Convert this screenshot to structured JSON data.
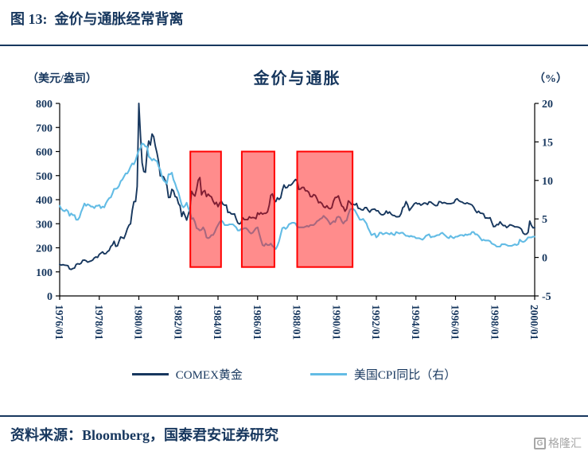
{
  "figure": {
    "caption": "图 13:  金价与通胀经常背离",
    "source": "资料来源：Bloomberg，国泰君安证券研究",
    "watermark": "格隆汇",
    "watermark_icon": "G"
  },
  "colors": {
    "navy": "#17375E",
    "gold_line": "#17375E",
    "cpi_line": "#63BCE5",
    "highlight_red": "#FF0000",
    "watermark_gray": "#A6A6A6"
  },
  "chart_data": {
    "type": "line",
    "title": "金价与通胀",
    "left_axis": {
      "unit": "（美元/盎司）",
      "min": 0,
      "max": 800,
      "ticks": [
        0,
        100,
        200,
        300,
        400,
        500,
        600,
        700,
        800
      ]
    },
    "right_axis": {
      "unit": "（%）",
      "min": -5,
      "max": 20,
      "ticks": [
        -5,
        0,
        5,
        10,
        15,
        20
      ]
    },
    "x_axis": {
      "min": 1976,
      "max": 2000,
      "ticks": [
        1976,
        1978,
        1980,
        1982,
        1984,
        1986,
        1988,
        1990,
        1992,
        1994,
        1996,
        1998,
        2000
      ],
      "tick_labels": [
        "1976/01",
        "1978/01",
        "1980/01",
        "1982/01",
        "1984/01",
        "1986/01",
        "1988/01",
        "1990/01",
        "1992/01",
        "1994/01",
        "1996/01",
        "1998/01",
        "2000/01"
      ]
    },
    "legend_position": "bottom",
    "grid": false,
    "series": [
      {
        "name": "COMEX黄金",
        "axis": "left",
        "color": "#17375E",
        "width": 1.9,
        "start_year": 1976,
        "freq": "monthly",
        "values": [
          131,
          128,
          130,
          128,
          127,
          126,
          112,
          110,
          114,
          116,
          131,
          134,
          132,
          136,
          148,
          149,
          146,
          140,
          143,
          145,
          149,
          158,
          162,
          160,
          173,
          178,
          183,
          175,
          176,
          184,
          189,
          206,
          212,
          227,
          206,
          208,
          227,
          245,
          242,
          239,
          257,
          279,
          294,
          300,
          355,
          392,
          392,
          455,
          800,
          665,
          553,
          517,
          514,
          600,
          644,
          627,
          673,
          661,
          623,
          594,
          557,
          499,
          498,
          495,
          479,
          460,
          409,
          410,
          443,
          437,
          413,
          410,
          384,
          374,
          330,
          350,
          334,
          315,
          339,
          364,
          435,
          422,
          415,
          444,
          481,
          492,
          420,
          433,
          438,
          413,
          423,
          416,
          412,
          394,
          381,
          389,
          371,
          386,
          394,
          381,
          377,
          378,
          347,
          348,
          341,
          340,
          341,
          320,
          303,
          299,
          304,
          325,
          317,
          317,
          317,
          329,
          324,
          326,
          325,
          321,
          345,
          339,
          346,
          340,
          343,
          343,
          349,
          376,
          418,
          424,
          399,
          392,
          408,
          401,
          408,
          439,
          461,
          449,
          451,
          461,
          460,
          466,
          476,
          484,
          477,
          443,
          444,
          451,
          451,
          437,
          437,
          431,
          413,
          412,
          421,
          418,
          404,
          387,
          390,
          384,
          371,
          367,
          375,
          365,
          362,
          367,
          394,
          409,
          410,
          416,
          393,
          374,
          369,
          352,
          362,
          395,
          389,
          380,
          381,
          378,
          384,
          364,
          363,
          358,
          357,
          367,
          367,
          356,
          348,
          358,
          360,
          361,
          354,
          354,
          344,
          338,
          337,
          341,
          353,
          343,
          349,
          340,
          335,
          334,
          329,
          329,
          330,
          342,
          367,
          372,
          392,
          378,
          355,
          364,
          373,
          383,
          387,
          382,
          384,
          377,
          381,
          386,
          385,
          380,
          391,
          390,
          384,
          379,
          375,
          376,
          392,
          391,
          385,
          388,
          386,
          383,
          383,
          383,
          385,
          387,
          400,
          404,
          396,
          392,
          390,
          385,
          383,
          387,
          383,
          381,
          378,
          369,
          355,
          346,
          352,
          344,
          343,
          341,
          324,
          324,
          323,
          325,
          306,
          288,
          289,
          297,
          296,
          308,
          299,
          292,
          293,
          284,
          289,
          296,
          294,
          291,
          287,
          287,
          286,
          283,
          277,
          261,
          256,
          257,
          264,
          311,
          293,
          283,
          284
        ]
      },
      {
        "name": "美国CPI同比（右）",
        "axis": "right",
        "color": "#63BCE5",
        "width": 2.1,
        "start_year": 1976,
        "freq": "monthly",
        "values": [
          6.7,
          6.3,
          6.1,
          6.0,
          6.2,
          6.0,
          5.4,
          5.7,
          5.5,
          5.5,
          4.9,
          4.9,
          5.2,
          5.9,
          6.4,
          7.0,
          6.7,
          6.9,
          6.8,
          6.6,
          6.6,
          6.4,
          6.7,
          6.7,
          6.8,
          6.4,
          6.6,
          6.5,
          7.0,
          7.4,
          7.7,
          7.8,
          8.3,
          8.9,
          8.9,
          9.0,
          9.3,
          9.9,
          10.1,
          10.5,
          10.9,
          10.9,
          11.3,
          11.8,
          12.2,
          12.1,
          12.6,
          13.3,
          13.9,
          14.2,
          14.8,
          14.7,
          14.4,
          14.4,
          13.1,
          12.9,
          12.6,
          12.8,
          12.6,
          12.5,
          11.8,
          11.4,
          10.5,
          10.0,
          9.8,
          9.6,
          10.8,
          10.8,
          11.0,
          10.1,
          9.6,
          8.9,
          8.4,
          7.6,
          6.8,
          6.5,
          6.7,
          7.1,
          6.4,
          5.9,
          5.0,
          5.1,
          4.6,
          3.8,
          3.7,
          3.5,
          3.6,
          3.9,
          3.5,
          2.6,
          2.5,
          2.6,
          2.9,
          2.9,
          3.3,
          3.8,
          4.2,
          4.6,
          4.8,
          4.6,
          4.2,
          4.2,
          4.2,
          4.3,
          4.3,
          4.3,
          4.1,
          3.9,
          3.5,
          3.5,
          3.7,
          3.7,
          3.8,
          3.8,
          3.6,
          3.3,
          3.1,
          3.2,
          3.5,
          3.8,
          3.9,
          3.1,
          2.3,
          1.6,
          1.5,
          1.8,
          1.6,
          1.6,
          1.8,
          1.5,
          1.3,
          1.1,
          1.5,
          2.1,
          3.0,
          3.8,
          3.9,
          3.7,
          3.9,
          4.3,
          4.4,
          4.5,
          4.5,
          4.4,
          4.0,
          3.9,
          3.9,
          3.9,
          3.9,
          4.0,
          4.1,
          4.0,
          4.2,
          4.2,
          4.2,
          4.4,
          4.7,
          4.8,
          5.0,
          5.1,
          5.4,
          5.2,
          5.0,
          4.7,
          4.3,
          4.5,
          4.7,
          4.6,
          5.2,
          5.3,
          5.2,
          4.7,
          4.4,
          4.7,
          4.8,
          5.6,
          6.2,
          6.3,
          6.3,
          6.1,
          5.7,
          5.3,
          4.9,
          4.9,
          5.0,
          4.7,
          4.4,
          3.8,
          3.4,
          2.9,
          3.0,
          3.1,
          2.6,
          2.8,
          3.2,
          3.2,
          3.0,
          3.1,
          3.2,
          3.1,
          3.0,
          3.2,
          3.0,
          2.9,
          3.3,
          3.2,
          3.1,
          3.2,
          3.2,
          3.0,
          2.8,
          2.8,
          2.7,
          2.8,
          2.7,
          2.7,
          2.5,
          2.5,
          2.5,
          2.4,
          2.3,
          2.5,
          2.8,
          2.9,
          3.0,
          2.6,
          2.7,
          2.7,
          2.8,
          2.9,
          2.9,
          3.1,
          3.2,
          3.0,
          2.8,
          2.6,
          2.5,
          2.8,
          2.6,
          2.5,
          2.7,
          2.7,
          2.8,
          2.9,
          2.9,
          2.8,
          3.0,
          2.9,
          3.0,
          3.0,
          3.3,
          3.3,
          3.0,
          3.0,
          2.8,
          2.5,
          2.2,
          2.3,
          2.2,
          2.2,
          2.2,
          2.1,
          1.8,
          1.7,
          1.6,
          1.4,
          1.4,
          1.4,
          1.7,
          1.7,
          1.7,
          1.6,
          1.5,
          1.5,
          1.5,
          1.6,
          1.7,
          1.6,
          1.7,
          2.3,
          2.1,
          2.0,
          2.1,
          2.3,
          2.6,
          2.6,
          2.6,
          2.7,
          2.7
        ]
      }
    ],
    "highlight_boxes": {
      "stroke": "#FF0000",
      "fill": "#FF0000",
      "fill_opacity": 0.45,
      "y_range": [
        120,
        600
      ],
      "x_ranges": [
        [
          1982.6,
          1984.15
        ],
        [
          1985.2,
          1986.85
        ],
        [
          1988.0,
          1990.8
        ]
      ]
    }
  }
}
